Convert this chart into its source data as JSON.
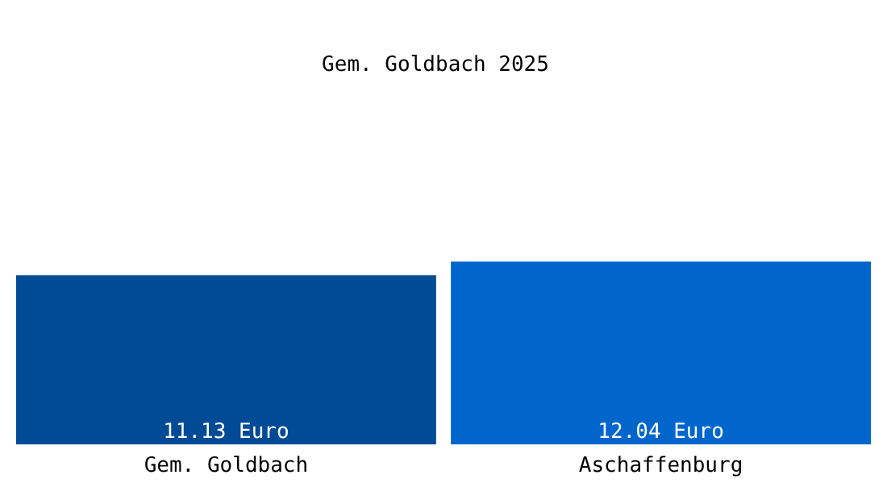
{
  "chart_data": {
    "type": "bar",
    "title": "Gem. Goldbach 2025",
    "categories": [
      "Gem. Goldbach",
      "Aschaffenburg"
    ],
    "values": [
      11.13,
      12.04
    ],
    "colors": [
      "#004a96",
      "#0066cc"
    ],
    "value_labels": [
      "11.13 Euro",
      "12.04 Euro"
    ]
  }
}
